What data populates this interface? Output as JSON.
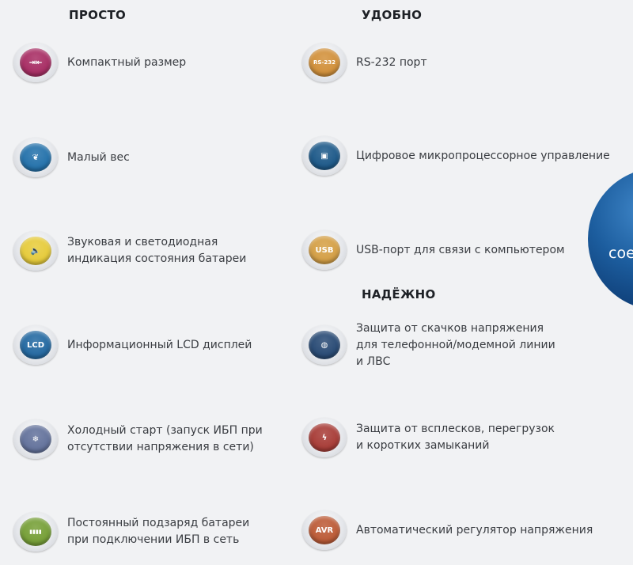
{
  "left": {
    "heading": "ПРОСТО",
    "items": [
      {
        "icon": "compact-size-icon",
        "color": "#a3205a",
        "glyph": "⇥⇤",
        "lines": [
          "Компактный размер"
        ]
      },
      {
        "icon": "feather-icon",
        "color": "#1669a6",
        "glyph": "❦",
        "lines": [
          "Малый вес"
        ]
      },
      {
        "icon": "speaker-icon",
        "color": "#e6c92e",
        "glyph": "🔈",
        "lines": [
          "Звуковая и светодиодная",
          "индикация состояния батареи"
        ]
      },
      {
        "icon": "lcd-icon",
        "color": "#16609c",
        "glyph": "LCD",
        "lines": [
          "Информационный LCD дисплей"
        ]
      },
      {
        "icon": "snowflake-icon",
        "color": "#5a6a96",
        "glyph": "❄",
        "lines": [
          "Холодный старт (запуск ИБП при",
          "отсутствии напряжения в сети)"
        ]
      },
      {
        "icon": "battery-icon",
        "color": "#6e9a2a",
        "glyph": "▮▮▮▮",
        "lines": [
          "Постоянный подзаряд батареи",
          "при подключении ИБП в сеть"
        ]
      }
    ]
  },
  "right": {
    "heading": "УДОБНО",
    "heading2": "НАДЁЖНО",
    "items": [
      {
        "icon": "rs232-port-icon",
        "color": "#d08a2e",
        "glyph": "RS-232",
        "lines": [
          "RS-232 порт"
        ]
      },
      {
        "icon": "microprocessor-icon",
        "color": "#0f4f82",
        "glyph": "▣",
        "lines": [
          "Цифровое микропроцессорное управление"
        ]
      },
      {
        "icon": "usb-icon",
        "color": "#d39a3a",
        "glyph": "USB",
        "lines": [
          "USB-порт для связи с компьютером"
        ]
      },
      {
        "icon": "globe-protection-icon",
        "color": "#1b3f6c",
        "glyph": "◍",
        "lines": [
          "Защита от скачков напряжения",
          "для  телефонной/модемной линии",
          "и ЛВС"
        ]
      },
      {
        "icon": "surge-shield-icon",
        "color": "#a3302a",
        "glyph": "ϟ",
        "lines": [
          "Защита от всплесков, перегрузок",
          "и коротких  замыканий"
        ]
      },
      {
        "icon": "avr-icon",
        "color": "#b9512a",
        "glyph": "AVR",
        "lines": [
          "Автоматический регулятор напряжения"
        ]
      }
    ]
  },
  "badge": {
    "text": "сое",
    "color": "#1c5d9e"
  }
}
